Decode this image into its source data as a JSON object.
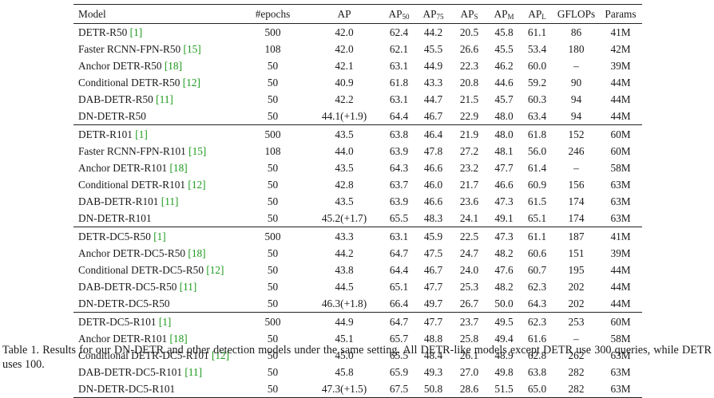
{
  "table": {
    "headers": {
      "model": "Model",
      "epochs": "#epochs",
      "ap": "AP",
      "ap50": {
        "base": "AP",
        "sub": "50"
      },
      "ap75": {
        "base": "AP",
        "sub": "75"
      },
      "aps": {
        "base": "AP",
        "sub": "S"
      },
      "apm": {
        "base": "AP",
        "sub": "M"
      },
      "apl": {
        "base": "AP",
        "sub": "L"
      },
      "gflops": "GFLOPs",
      "params": "Params"
    },
    "groups": [
      {
        "rows": [
          {
            "name": "DETR-R50",
            "ref": "[1]",
            "epochs": "500",
            "ap": "42.0",
            "ap50": "62.4",
            "ap75": "44.2",
            "aps": "20.5",
            "apm": "45.8",
            "apl": "61.1",
            "gflops": "86",
            "params": "41M"
          },
          {
            "name": "Faster RCNN-FPN-R50",
            "ref": "[15]",
            "epochs": "108",
            "ap": "42.0",
            "ap50": "62.1",
            "ap75": "45.5",
            "aps": "26.6",
            "apm": "45.5",
            "apl": "53.4",
            "gflops": "180",
            "params": "42M"
          },
          {
            "name": "Anchor DETR-R50",
            "ref": "[18]",
            "epochs": "50",
            "ap": "42.1",
            "ap50": "63.1",
            "ap75": "44.9",
            "aps": "22.3",
            "apm": "46.2",
            "apl": "60.0",
            "gflops": "–",
            "params": "39M"
          },
          {
            "name": "Conditional DETR-R50",
            "ref": "[12]",
            "epochs": "50",
            "ap": "40.9",
            "ap50": "61.8",
            "ap75": "43.3",
            "aps": "20.8",
            "apm": "44.6",
            "apl": "59.2",
            "gflops": "90",
            "params": "44M"
          },
          {
            "name": "DAB-DETR-R50",
            "ref": "[11]",
            "epochs": "50",
            "ap": "42.2",
            "ap50": "63.1",
            "ap75": "44.7",
            "aps": "21.5",
            "apm": "45.7",
            "apl": "60.3",
            "gflops": "94",
            "params": "44M"
          },
          {
            "name": "DN-DETR-R50",
            "ref": "",
            "epochs": "50",
            "ap": "44.1(+1.9)",
            "ap_bold": true,
            "ap50": "64.4",
            "ap75": "46.7",
            "aps": "22.9",
            "apm": "48.0",
            "apl": "63.4",
            "gflops": "94",
            "params": "44M"
          }
        ]
      },
      {
        "rows": [
          {
            "name": "DETR-R101",
            "ref": "[1]",
            "epochs": "500",
            "ap": "43.5",
            "ap50": "63.8",
            "ap75": "46.4",
            "aps": "21.9",
            "apm": "48.0",
            "apl": "61.8",
            "gflops": "152",
            "params": "60M"
          },
          {
            "name": "Faster RCNN-FPN-R101",
            "ref": "[15]",
            "epochs": "108",
            "ap": "44.0",
            "ap50": "63.9",
            "ap75": "47.8",
            "aps": "27.2",
            "apm": "48.1",
            "apl": "56.0",
            "gflops": "246",
            "params": "60M"
          },
          {
            "name": "Anchor DETR-R101",
            "ref": "[18]",
            "epochs": "50",
            "ap": "43.5",
            "ap50": "64.3",
            "ap75": "46.6",
            "aps": "23.2",
            "apm": "47.7",
            "apl": "61.4",
            "gflops": "–",
            "params": "58M"
          },
          {
            "name": "Conditional DETR-R101",
            "ref": "[12]",
            "epochs": "50",
            "ap": "42.8",
            "ap50": "63.7",
            "ap75": "46.0",
            "aps": "21.7",
            "apm": "46.6",
            "apl": "60.9",
            "gflops": "156",
            "params": "63M"
          },
          {
            "name": "DAB-DETR-R101",
            "ref": "[11]",
            "epochs": "50",
            "ap": "43.5",
            "ap50": "63.9",
            "ap75": "46.6",
            "aps": "23.6",
            "apm": "47.3",
            "apl": "61.5",
            "gflops": "174",
            "params": "63M"
          },
          {
            "name": "DN-DETR-R101",
            "ref": "",
            "epochs": "50",
            "ap": "45.2(+1.7)",
            "ap_bold": true,
            "ap50": "65.5",
            "ap75": "48.3",
            "aps": "24.1",
            "apm": "49.1",
            "apl": "65.1",
            "gflops": "174",
            "params": "63M"
          }
        ]
      },
      {
        "rows": [
          {
            "name": "DETR-DC5-R50",
            "ref": "[1]",
            "epochs": "500",
            "ap": "43.3",
            "ap50": "63.1",
            "ap75": "45.9",
            "aps": "22.5",
            "apm": "47.3",
            "apl": "61.1",
            "gflops": "187",
            "params": "41M"
          },
          {
            "name": "Anchor DETR-DC5-R50",
            "ref": "[18]",
            "epochs": "50",
            "ap": "44.2",
            "ap50": "64.7",
            "ap75": "47.5",
            "aps": "24.7",
            "apm": "48.2",
            "apl": "60.6",
            "gflops": "151",
            "params": "39M"
          },
          {
            "name": "Conditional DETR-DC5-R50",
            "ref": "[12]",
            "epochs": "50",
            "ap": "43.8",
            "ap50": "64.4",
            "ap75": "46.7",
            "aps": "24.0",
            "apm": "47.6",
            "apl": "60.7",
            "gflops": "195",
            "params": "44M"
          },
          {
            "name": "DAB-DETR-DC5-R50",
            "ref": "[11]",
            "epochs": "50",
            "ap": "44.5",
            "ap50": "65.1",
            "ap75": "47.7",
            "aps": "25.3",
            "apm": "48.2",
            "apl": "62.3",
            "gflops": "202",
            "params": "44M"
          },
          {
            "name": "DN-DETR-DC5-R50",
            "ref": "",
            "epochs": "50",
            "ap": "46.3(+1.8)",
            "ap_bold": true,
            "ap50": "66.4",
            "ap75": "49.7",
            "aps": "26.7",
            "apm": "50.0",
            "apl": "64.3",
            "gflops": "202",
            "params": "44M"
          }
        ]
      },
      {
        "rows": [
          {
            "name": "DETR-DC5-R101",
            "ref": "[1]",
            "epochs": "500",
            "ap": "44.9",
            "ap50": "64.7",
            "ap75": "47.7",
            "aps": "23.7",
            "apm": "49.5",
            "apl": "62.3",
            "gflops": "253",
            "params": "60M"
          },
          {
            "name": "Anchor DETR-R101",
            "ref": "[18]",
            "epochs": "50",
            "ap": "45.1",
            "ap50": "65.7",
            "ap75": "48.8",
            "aps": "25.8",
            "apm": "49.4",
            "apl": "61.6",
            "gflops": "–",
            "params": "58M"
          },
          {
            "name": "Conditional DETR-DC5-R101",
            "ref": "[12]",
            "epochs": "50",
            "ap": "45.0",
            "ap50": "65.5",
            "ap75": "48.4",
            "aps": "26.1",
            "apm": "48.9",
            "apl": "62.8",
            "gflops": "262",
            "params": "63M"
          },
          {
            "name": "DAB-DETR-DC5-R101",
            "ref": "[11]",
            "epochs": "50",
            "ap": "45.8",
            "ap50": "65.9",
            "ap75": "49.3",
            "aps": "27.0",
            "apm": "49.8",
            "apl": "63.8",
            "gflops": "282",
            "params": "63M"
          },
          {
            "name": "DN-DETR-DC5-R101",
            "ref": "",
            "epochs": "50",
            "ap": "47.3(+1.5)",
            "ap_bold": true,
            "ap50": "67.5",
            "ap75": "50.8",
            "aps": "28.6",
            "apm": "51.5",
            "apl": "65.0",
            "gflops": "282",
            "params": "63M"
          }
        ]
      }
    ]
  },
  "caption": "Table 1. Results for our DN-DETR and other detection models under the same setting. All DETR-like models except DETR use 300 queries, while DETR uses 100.",
  "colors": {
    "reference_link": "#1a9a1a",
    "text": "#1a1a1a",
    "rule": "#222222"
  }
}
